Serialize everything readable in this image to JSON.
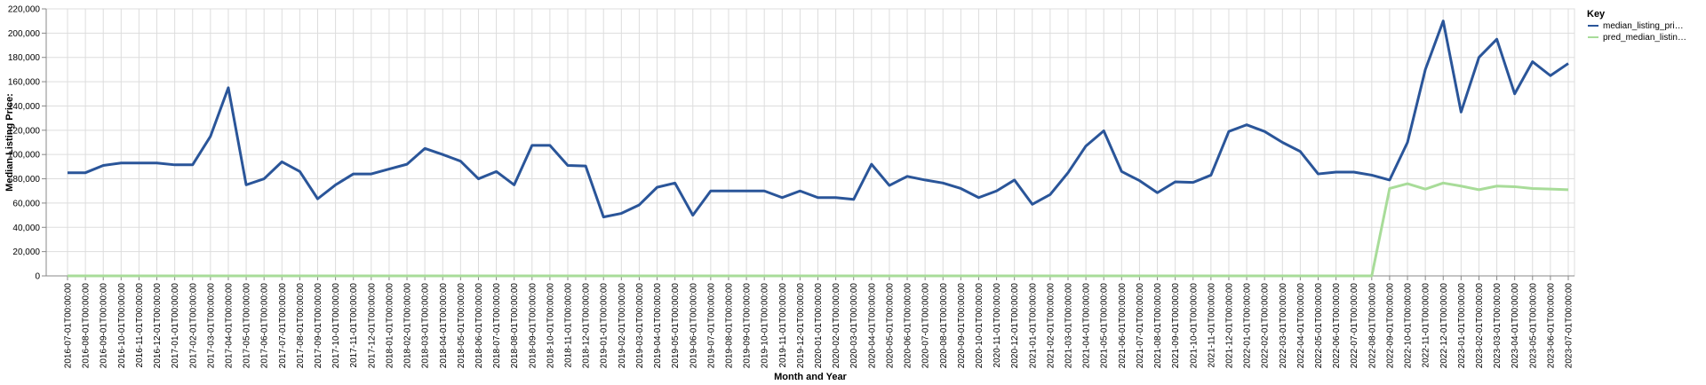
{
  "chart_data": {
    "type": "line",
    "title": "",
    "xlabel": "Month and Year",
    "ylabel": "Median Listing Price:",
    "ylim": [
      0,
      220000
    ],
    "y_ticks": [
      0,
      20000,
      40000,
      60000,
      80000,
      100000,
      120000,
      140000,
      160000,
      180000,
      200000,
      220000
    ],
    "y_tick_labels": [
      "0",
      "20,000",
      "40,000",
      "60,000",
      "80,000",
      "100,000",
      "120,000",
      "140,000",
      "160,000",
      "180,000",
      "200,000",
      "220,000"
    ],
    "grid": true,
    "legend": {
      "title": "Key",
      "position": "right"
    },
    "x": [
      "2016-07-01T00:00:00",
      "2016-08-01T00:00:00",
      "2016-09-01T00:00:00",
      "2016-10-01T00:00:00",
      "2016-11-01T00:00:00",
      "2016-12-01T00:00:00",
      "2017-01-01T00:00:00",
      "2017-02-01T00:00:00",
      "2017-03-01T00:00:00",
      "2017-04-01T00:00:00",
      "2017-05-01T00:00:00",
      "2017-06-01T00:00:00",
      "2017-07-01T00:00:00",
      "2017-08-01T00:00:00",
      "2017-09-01T00:00:00",
      "2017-10-01T00:00:00",
      "2017-11-01T00:00:00",
      "2017-12-01T00:00:00",
      "2018-01-01T00:00:00",
      "2018-02-01T00:00:00",
      "2018-03-01T00:00:00",
      "2018-04-01T00:00:00",
      "2018-05-01T00:00:00",
      "2018-06-01T00:00:00",
      "2018-07-01T00:00:00",
      "2018-08-01T00:00:00",
      "2018-09-01T00:00:00",
      "2018-10-01T00:00:00",
      "2018-11-01T00:00:00",
      "2018-12-01T00:00:00",
      "2019-01-01T00:00:00",
      "2019-02-01T00:00:00",
      "2019-03-01T00:00:00",
      "2019-04-01T00:00:00",
      "2019-05-01T00:00:00",
      "2019-06-01T00:00:00",
      "2019-07-01T00:00:00",
      "2019-08-01T00:00:00",
      "2019-09-01T00:00:00",
      "2019-10-01T00:00:00",
      "2019-11-01T00:00:00",
      "2019-12-01T00:00:00",
      "2020-01-01T00:00:00",
      "2020-02-01T00:00:00",
      "2020-03-01T00:00:00",
      "2020-04-01T00:00:00",
      "2020-05-01T00:00:00",
      "2020-06-01T00:00:00",
      "2020-07-01T00:00:00",
      "2020-08-01T00:00:00",
      "2020-09-01T00:00:00",
      "2020-10-01T00:00:00",
      "2020-11-01T00:00:00",
      "2020-12-01T00:00:00",
      "2021-01-01T00:00:00",
      "2021-02-01T00:00:00",
      "2021-03-01T00:00:00",
      "2021-04-01T00:00:00",
      "2021-05-01T00:00:00",
      "2021-06-01T00:00:00",
      "2021-07-01T00:00:00",
      "2021-08-01T00:00:00",
      "2021-09-01T00:00:00",
      "2021-10-01T00:00:00",
      "2021-11-01T00:00:00",
      "2021-12-01T00:00:00",
      "2022-01-01T00:00:00",
      "2022-02-01T00:00:00",
      "2022-03-01T00:00:00",
      "2022-04-01T00:00:00",
      "2022-05-01T00:00:00",
      "2022-06-01T00:00:00",
      "2022-07-01T00:00:00",
      "2022-08-01T00:00:00",
      "2022-09-01T00:00:00",
      "2022-10-01T00:00:00",
      "2022-11-01T00:00:00",
      "2022-12-01T00:00:00",
      "2023-01-01T00:00:00",
      "2023-02-01T00:00:00",
      "2023-03-01T00:00:00",
      "2023-04-01T00:00:00",
      "2023-05-01T00:00:00",
      "2023-06-01T00:00:00",
      "2023-07-01T00:00:00"
    ],
    "series": [
      {
        "name": "median_listing_pri…",
        "color": "#2a5599",
        "values": [
          85000,
          85000,
          91000,
          93000,
          93000,
          93000,
          91500,
          91500,
          115000,
          155000,
          75000,
          80000,
          94000,
          86000,
          63500,
          75000,
          84000,
          84000,
          88000,
          92000,
          105000,
          100000,
          94500,
          80000,
          86000,
          75000,
          107500,
          107500,
          91000,
          90500,
          48500,
          51500,
          58500,
          73000,
          76500,
          50000,
          70000,
          70000,
          70000,
          70000,
          64500,
          70000,
          64500,
          64500,
          63000,
          92000,
          74500,
          82000,
          79000,
          76500,
          72000,
          64500,
          70000,
          79000,
          59000,
          67000,
          85000,
          107000,
          119500,
          86000,
          78500,
          68500,
          77500,
          77000,
          83000,
          119000,
          124500,
          119000,
          110000,
          102500,
          84000,
          85500,
          85500,
          83000,
          79000,
          110000,
          170000,
          210000,
          135000,
          180000,
          195000,
          150000,
          176500,
          165000,
          175000
        ]
      },
      {
        "name": "pred_median_listin…",
        "color": "#a8dc99",
        "values": [
          0,
          0,
          0,
          0,
          0,
          0,
          0,
          0,
          0,
          0,
          0,
          0,
          0,
          0,
          0,
          0,
          0,
          0,
          0,
          0,
          0,
          0,
          0,
          0,
          0,
          0,
          0,
          0,
          0,
          0,
          0,
          0,
          0,
          0,
          0,
          0,
          0,
          0,
          0,
          0,
          0,
          0,
          0,
          0,
          0,
          0,
          0,
          0,
          0,
          0,
          0,
          0,
          0,
          0,
          0,
          0,
          0,
          0,
          0,
          0,
          0,
          0,
          0,
          0,
          0,
          0,
          0,
          0,
          0,
          0,
          0,
          0,
          0,
          0,
          72000,
          76000,
          71500,
          76500,
          74000,
          71000,
          74000,
          73500,
          72000,
          71500,
          71000
        ]
      }
    ]
  }
}
